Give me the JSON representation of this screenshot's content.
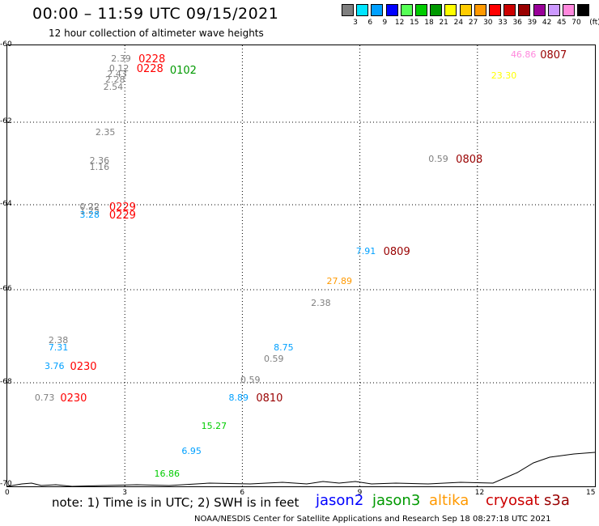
{
  "header": {
    "title": "00:00 – 11:59 UTC 09/15/2021",
    "subtitle": "12 hour collection of altimeter wave heights"
  },
  "legend": {
    "unit": "(ft)",
    "swatches": [
      {
        "color": "#7f7f7f",
        "label": "3"
      },
      {
        "color": "#00e5ff",
        "label": "6"
      },
      {
        "color": "#00a0ff",
        "label": "9"
      },
      {
        "color": "#0000ff",
        "label": "12"
      },
      {
        "color": "#55ff55",
        "label": "15"
      },
      {
        "color": "#00cc00",
        "label": "18"
      },
      {
        "color": "#009900",
        "label": "21"
      },
      {
        "color": "#ffff00",
        "label": "24"
      },
      {
        "color": "#ffcc00",
        "label": "27"
      },
      {
        "color": "#ff9900",
        "label": "30"
      },
      {
        "color": "#ff0000",
        "label": "33"
      },
      {
        "color": "#cc0000",
        "label": "36"
      },
      {
        "color": "#990000",
        "label": "39"
      },
      {
        "color": "#990099",
        "label": "42"
      },
      {
        "color": "#cc99ff",
        "label": "45"
      },
      {
        "color": "#ff88dd",
        "label": "70"
      },
      {
        "color": "#000000",
        "label": ""
      }
    ]
  },
  "axes": {
    "lat_labels": [
      "-60",
      "-62",
      "-64",
      "-66",
      "-68",
      "-70"
    ],
    "lon_labels": [
      "0",
      "3",
      "6",
      "9",
      "12",
      "15"
    ]
  },
  "observations": [
    {
      "text": "2.39",
      "kind": "val",
      "color": "#7f7f7f",
      "lon": 2.65,
      "lat": -60.35
    },
    {
      "text": "0228",
      "kind": "time",
      "color": "#ff0000",
      "lon": 3.35,
      "lat": -60.35
    },
    {
      "text": "0.12",
      "kind": "val",
      "color": "#7f7f7f",
      "lon": 2.6,
      "lat": -60.6
    },
    {
      "text": "2.43",
      "kind": "val",
      "color": "#7f7f7f",
      "lon": 2.55,
      "lat": -60.75
    },
    {
      "text": "0228",
      "kind": "time",
      "color": "#ff0000",
      "lon": 3.3,
      "lat": -60.6
    },
    {
      "text": "0102",
      "kind": "time",
      "color": "#009900",
      "lon": 4.15,
      "lat": -60.65
    },
    {
      "text": "2.28",
      "kind": "val",
      "color": "#7f7f7f",
      "lon": 2.5,
      "lat": -60.9
    },
    {
      "text": "2.54",
      "kind": "val",
      "color": "#7f7f7f",
      "lon": 2.45,
      "lat": -61.1
    },
    {
      "text": "2.35",
      "kind": "val",
      "color": "#7f7f7f",
      "lon": 2.25,
      "lat": -62.25
    },
    {
      "text": "2.36",
      "kind": "val",
      "color": "#7f7f7f",
      "lon": 2.1,
      "lat": -62.95
    },
    {
      "text": "1.16",
      "kind": "val",
      "color": "#7f7f7f",
      "lon": 2.1,
      "lat": -63.1
    },
    {
      "text": "0.22",
      "kind": "val",
      "color": "#7f7f7f",
      "lon": 1.85,
      "lat": -64.05
    },
    {
      "text": "1.25",
      "kind": "val",
      "color": "#7f7f7f",
      "lon": 1.85,
      "lat": -64.15
    },
    {
      "text": "3.28",
      "kind": "val",
      "color": "#00a0ff",
      "lon": 1.85,
      "lat": -64.25
    },
    {
      "text": "0229",
      "kind": "time",
      "color": "#ff0000",
      "lon": 2.6,
      "lat": -64.05
    },
    {
      "text": "0229",
      "kind": "time",
      "color": "#ff0000",
      "lon": 2.6,
      "lat": -64.25
    },
    {
      "text": "46.86",
      "kind": "val",
      "color": "#ff88dd",
      "lon": 12.85,
      "lat": -60.25
    },
    {
      "text": "0807",
      "kind": "time",
      "color": "#990000",
      "lon": 13.6,
      "lat": -60.25
    },
    {
      "text": "23.30",
      "kind": "val",
      "color": "#ffff00",
      "lon": 12.35,
      "lat": -60.8
    },
    {
      "text": "0.59",
      "kind": "val",
      "color": "#7f7f7f",
      "lon": 10.75,
      "lat": -62.9
    },
    {
      "text": "0808",
      "kind": "time",
      "color": "#990000",
      "lon": 11.45,
      "lat": -62.9
    },
    {
      "text": "7.91",
      "kind": "val",
      "color": "#00a0ff",
      "lon": 8.9,
      "lat": -65.1
    },
    {
      "text": "0809",
      "kind": "time",
      "color": "#990000",
      "lon": 9.6,
      "lat": -65.1
    },
    {
      "text": "27.89",
      "kind": "val",
      "color": "#ff9900",
      "lon": 8.15,
      "lat": -65.8
    },
    {
      "text": "2.38",
      "kind": "val",
      "color": "#7f7f7f",
      "lon": 7.75,
      "lat": -66.3
    },
    {
      "text": "2.38",
      "kind": "val",
      "color": "#7f7f7f",
      "lon": 1.05,
      "lat": -67.1
    },
    {
      "text": "7.31",
      "kind": "val",
      "color": "#00a0ff",
      "lon": 1.05,
      "lat": -67.25
    },
    {
      "text": "8.75",
      "kind": "val",
      "color": "#00a0ff",
      "lon": 6.8,
      "lat": -67.25
    },
    {
      "text": "0.59",
      "kind": "val",
      "color": "#7f7f7f",
      "lon": 6.55,
      "lat": -67.5
    },
    {
      "text": "3.76",
      "kind": "val",
      "color": "#00a0ff",
      "lon": 0.95,
      "lat": -67.65
    },
    {
      "text": "0230",
      "kind": "time",
      "color": "#ff0000",
      "lon": 1.6,
      "lat": -67.65
    },
    {
      "text": "0.59",
      "kind": "val",
      "color": "#7f7f7f",
      "lon": 5.95,
      "lat": -67.95
    },
    {
      "text": "8.89",
      "kind": "val",
      "color": "#00a0ff",
      "lon": 5.65,
      "lat": -68.3
    },
    {
      "text": "0810",
      "kind": "time",
      "color": "#990000",
      "lon": 6.35,
      "lat": -68.3
    },
    {
      "text": "0.73",
      "kind": "val",
      "color": "#7f7f7f",
      "lon": 0.7,
      "lat": -68.3
    },
    {
      "text": "0230",
      "kind": "time",
      "color": "#ff0000",
      "lon": 1.35,
      "lat": -68.3
    },
    {
      "text": "15.27",
      "kind": "val",
      "color": "#00cc00",
      "lon": 4.95,
      "lat": -68.85
    },
    {
      "text": "6.95",
      "kind": "val",
      "color": "#00a0ff",
      "lon": 4.45,
      "lat": -69.35
    },
    {
      "text": "16.86",
      "kind": "val",
      "color": "#00cc00",
      "lon": 3.75,
      "lat": -69.8
    }
  ],
  "footer": {
    "note": "note: 1) Time is in UTC; 2) SWH is in feet",
    "satellites": [
      {
        "name": "jason2",
        "color": "#0000ff"
      },
      {
        "name": "jason3",
        "color": "#009900"
      },
      {
        "name": "altika",
        "color": "#ff9900"
      },
      {
        "name": "cryosat",
        "color": "#cc0000"
      },
      {
        "name": "s3a",
        "color": "#990000"
      }
    ],
    "credit": "NOAA/NESDIS Center for Satellite Applications and Research     Sep 18 08:27:18 UTC 2021"
  }
}
